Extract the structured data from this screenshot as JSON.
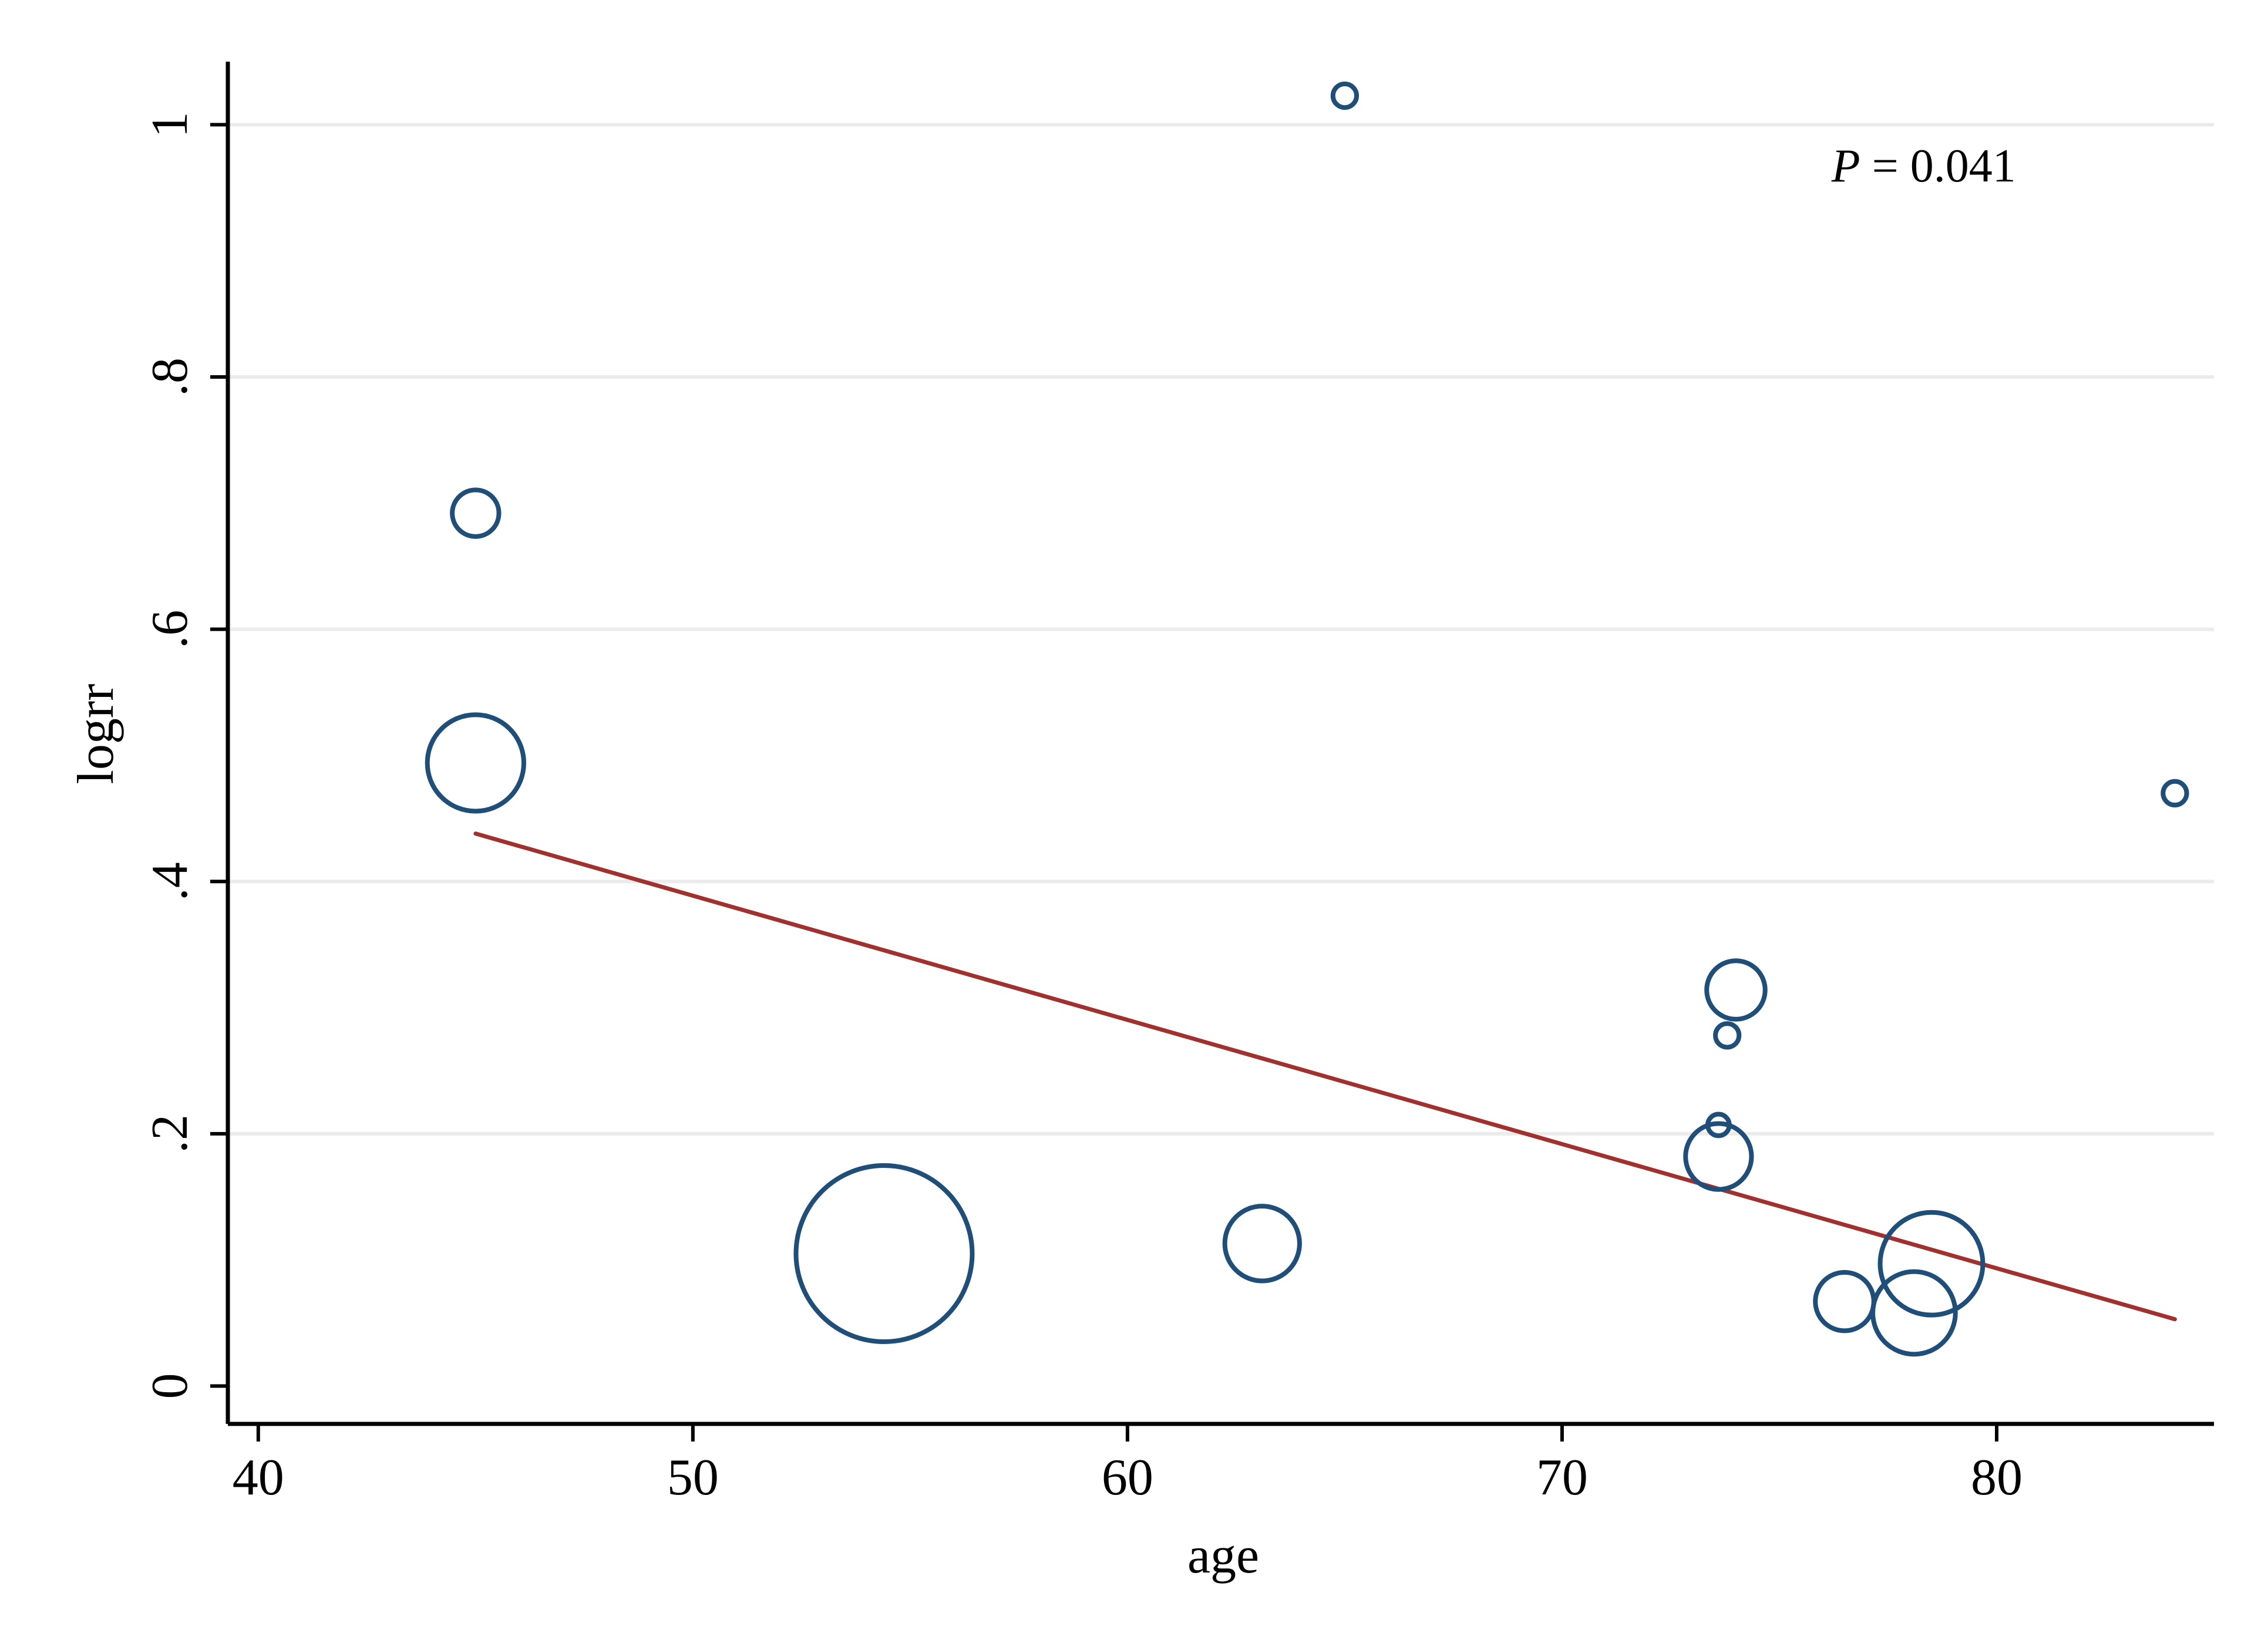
{
  "chart_data": {
    "type": "scatter",
    "title": "",
    "xlabel": "age",
    "ylabel": "logrr",
    "xlim": [
      39.3,
      85.0
    ],
    "ylim": [
      -0.03,
      1.05
    ],
    "xticks": [
      40,
      50,
      60,
      70,
      80
    ],
    "xtick_labels": [
      "40",
      "50",
      "60",
      "70",
      "80"
    ],
    "yticks": [
      0,
      0.2,
      0.4,
      0.6,
      0.8,
      1.0
    ],
    "ytick_labels": [
      "0",
      ".2",
      ".4",
      ".6",
      ".8",
      "1"
    ],
    "grid": "horizontal",
    "annotation": {
      "italic": "P",
      "text": " = 0.041",
      "x": 76.2,
      "y": 0.955
    },
    "bubble_scale": "weight (relative marker size)",
    "points": [
      {
        "x": 45.0,
        "y": 0.692,
        "size": 0.07
      },
      {
        "x": 45.0,
        "y": 0.494,
        "size": 0.3
      },
      {
        "x": 54.4,
        "y": 0.105,
        "size": 1.0
      },
      {
        "x": 63.1,
        "y": 0.113,
        "size": 0.18
      },
      {
        "x": 65.0,
        "y": 1.023,
        "size": 0.018
      },
      {
        "x": 73.6,
        "y": 0.207,
        "size": 0.015
      },
      {
        "x": 73.6,
        "y": 0.182,
        "size": 0.14
      },
      {
        "x": 73.8,
        "y": 0.278,
        "size": 0.018
      },
      {
        "x": 74.0,
        "y": 0.314,
        "size": 0.11
      },
      {
        "x": 76.5,
        "y": 0.067,
        "size": 0.11
      },
      {
        "x": 78.1,
        "y": 0.058,
        "size": 0.22
      },
      {
        "x": 78.5,
        "y": 0.097,
        "size": 0.34
      },
      {
        "x": 84.1,
        "y": 0.47,
        "size": 0.018
      }
    ],
    "fit_line": {
      "x": [
        45.0,
        84.1
      ],
      "y": [
        0.438,
        0.053
      ]
    },
    "colors": {
      "marker": "#1f4e79",
      "fit": "#a0312e",
      "grid": "#ebebeb",
      "axis": "#000000"
    }
  }
}
